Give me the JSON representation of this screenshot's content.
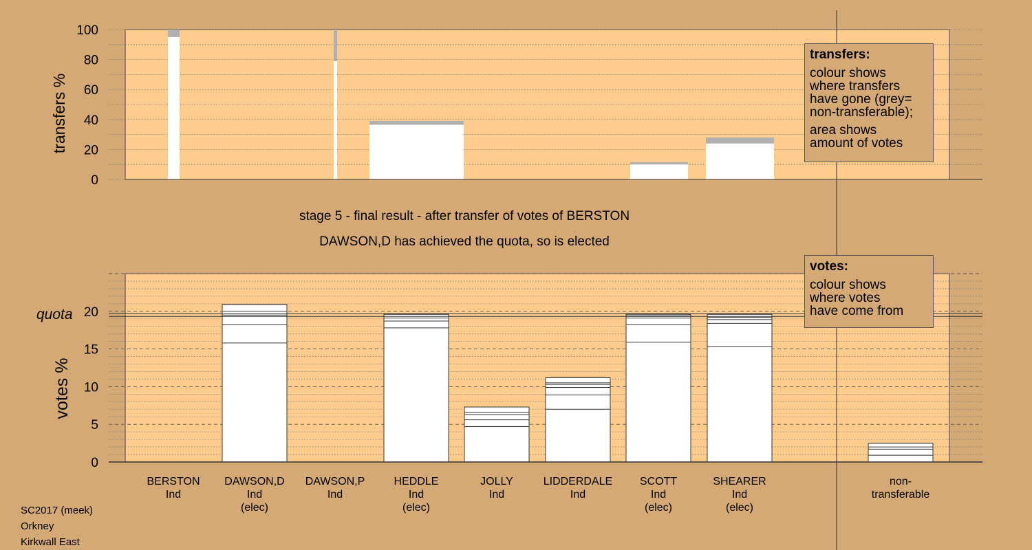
{
  "stage": {
    "title": "stage 5 - final result - after transfer of votes of BERSTON",
    "subtitle": "DAWSON,D has achieved the quota, so is elected"
  },
  "legends": {
    "transfers": {
      "title": "transfers:",
      "lines1": [
        "colour shows",
        "where transfers",
        "have gone (grey=",
        "non-transferable);"
      ],
      "lines2": [
        "area shows",
        "amount of votes"
      ]
    },
    "votes": {
      "title": "votes:",
      "lines": [
        "colour shows",
        "where votes",
        "have come from"
      ]
    }
  },
  "footer": [
    "SC2017 (meek)",
    "Orkney",
    "Kirkwall East"
  ],
  "colors": {
    "background": "#d4a976",
    "plot_bg": "#ffcc8e",
    "bar": "#ffffff",
    "non_transferable": "#b0b0b0"
  },
  "candidates": [
    {
      "name": "BERSTON",
      "party": "Ind",
      "status": ""
    },
    {
      "name": "DAWSON,D",
      "party": "Ind",
      "status": "(elec)"
    },
    {
      "name": "DAWSON,P",
      "party": "Ind",
      "status": ""
    },
    {
      "name": "HEDDLE",
      "party": "Ind",
      "status": "(elec)"
    },
    {
      "name": "JOLLY",
      "party": "Ind",
      "status": ""
    },
    {
      "name": "LIDDERDALE",
      "party": "Ind",
      "status": ""
    },
    {
      "name": "SCOTT",
      "party": "Ind",
      "status": "(elec)"
    },
    {
      "name": "SHEARER",
      "party": "Ind",
      "status": "(elec)"
    },
    {
      "name": "non-\ntransferable",
      "party": "",
      "status": ""
    }
  ],
  "chart_data": [
    {
      "type": "bar",
      "ylabel": "transfers %",
      "ylim": [
        0,
        100
      ],
      "yticks": [
        0,
        20,
        40,
        60,
        80,
        100
      ],
      "bars": [
        {
          "transferred": 95,
          "non_transferable": 5
        },
        {
          "transferred": 79,
          "non_transferable": 21
        },
        {
          "transferred": 36.5,
          "non_transferable": 2.5
        },
        {
          "transferred": 10,
          "non_transferable": 1.5
        },
        {
          "transferred": 24,
          "non_transferable": 4
        }
      ]
    },
    {
      "type": "bar",
      "ylabel": "votes %",
      "ylim": [
        0,
        25
      ],
      "yticks": [
        0,
        5,
        10,
        15,
        20
      ],
      "quota": 19.5,
      "quota_label": "quota",
      "categories": [
        "BERSTON",
        "DAWSON,D",
        "DAWSON,P",
        "HEDDLE",
        "JOLLY",
        "LIDDERDALE",
        "SCOTT",
        "SHEARER",
        "non-transferable"
      ],
      "values": [
        0,
        20.9,
        0,
        19.6,
        7.3,
        11.2,
        19.6,
        19.6,
        2.5
      ],
      "segments": [
        [],
        [
          15.8,
          18.2,
          19.5,
          20.0,
          20.9
        ],
        [],
        [
          17.8,
          18.7,
          19.1,
          19.6
        ],
        [
          4.7,
          5.6,
          6.3,
          6.6,
          7.3
        ],
        [
          7.0,
          8.9,
          9.9,
          10.3,
          10.5,
          11.2
        ],
        [
          15.9,
          18.2,
          19.1,
          19.4,
          19.6
        ],
        [
          15.3,
          18.4,
          18.9,
          19.2,
          19.6
        ],
        [
          0.9,
          1.7,
          2.0,
          2.5
        ]
      ]
    }
  ]
}
